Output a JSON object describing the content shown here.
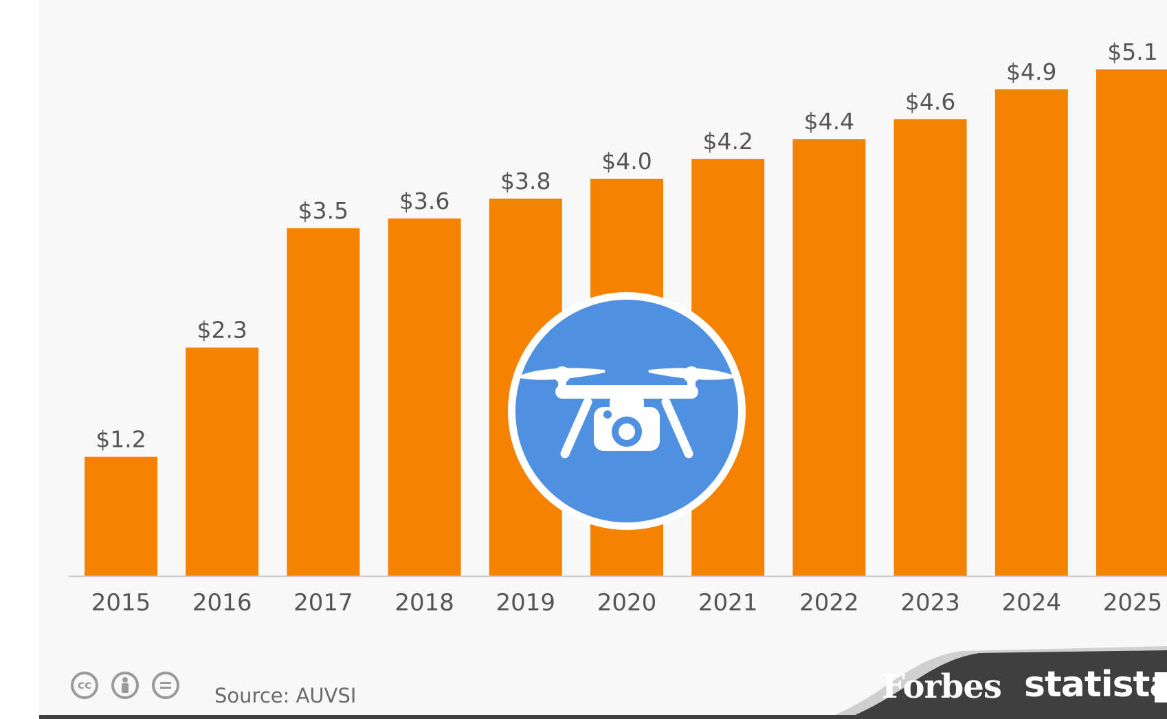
{
  "chart_data": {
    "type": "bar",
    "categories": [
      "2015",
      "2016",
      "2017",
      "2018",
      "2019",
      "2020",
      "2021",
      "2022",
      "2023",
      "2024",
      "2025"
    ],
    "values": [
      1.2,
      2.3,
      3.5,
      3.6,
      3.8,
      4.0,
      4.2,
      4.4,
      4.6,
      4.9,
      5.1
    ],
    "value_labels": [
      "$1.2",
      "$2.3",
      "$3.5",
      "$3.6",
      "$3.8",
      "$4.0",
      "$4.2",
      "$4.4",
      "$4.6",
      "$4.9",
      "$5.1"
    ],
    "title": "",
    "xlabel": "",
    "ylabel": "",
    "ylim": [
      0,
      5.1
    ],
    "grid": false,
    "bar_color": "#f58200"
  },
  "footer": {
    "source": "Source: AUVSI",
    "brand_forbes": "Forbes",
    "brand_statista": "statista",
    "license_icons": [
      "cc-icon",
      "attribution-icon",
      "no-derivatives-icon"
    ]
  },
  "colors": {
    "bar": "#f58200",
    "background": "#f8f8f8",
    "drone_badge": "#5090e0",
    "footer_band": "#3f3f3f"
  },
  "badge_icon": "drone-camera-icon"
}
